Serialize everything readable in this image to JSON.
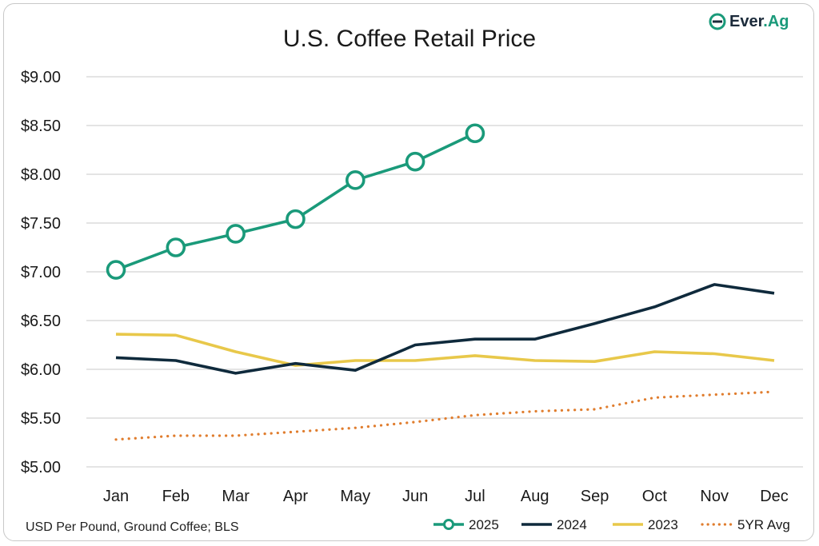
{
  "chart_data": {
    "type": "line",
    "title": "U.S. Coffee Retail Price",
    "categories": [
      "Jan",
      "Feb",
      "Mar",
      "Apr",
      "May",
      "Jun",
      "Jul",
      "Aug",
      "Sep",
      "Oct",
      "Nov",
      "Dec"
    ],
    "ylim": [
      5.0,
      9.0
    ],
    "yticks": [
      5.0,
      5.5,
      6.0,
      6.5,
      7.0,
      7.5,
      8.0,
      8.5,
      9.0
    ],
    "ytick_labels": [
      "$5.00",
      "$5.50",
      "$6.00",
      "$6.50",
      "$7.00",
      "$7.50",
      "$8.00",
      "$8.50",
      "$9.00"
    ],
    "grid": "horizontal",
    "legend_position": "bottom-right",
    "series": [
      {
        "name": "2025",
        "color": "#1a9a7a",
        "style": "solid-markers",
        "values": [
          7.02,
          7.25,
          7.39,
          7.54,
          7.94,
          8.13,
          8.42,
          null,
          null,
          null,
          null,
          null
        ]
      },
      {
        "name": "2024",
        "color": "#0f2a3c",
        "style": "solid",
        "values": [
          6.12,
          6.09,
          5.96,
          6.06,
          5.99,
          6.25,
          6.31,
          6.31,
          6.47,
          6.64,
          6.87,
          6.78
        ]
      },
      {
        "name": "2023",
        "color": "#e8c84a",
        "style": "solid",
        "values": [
          6.36,
          6.35,
          6.18,
          6.04,
          6.09,
          6.09,
          6.14,
          6.09,
          6.08,
          6.18,
          6.16,
          6.09
        ]
      },
      {
        "name": "5YR Avg",
        "color": "#e07d2e",
        "style": "dotted",
        "values": [
          5.28,
          5.32,
          5.32,
          5.36,
          5.4,
          5.46,
          5.53,
          5.57,
          5.59,
          5.71,
          5.74,
          5.77
        ]
      }
    ]
  },
  "logo": {
    "name": "Ever.Ag",
    "part1": "Ever",
    "part2": ".Ag",
    "icon": "everag-logo-icon"
  },
  "footer": {
    "source_note": "USD Per Pound, Ground Coffee; BLS"
  }
}
